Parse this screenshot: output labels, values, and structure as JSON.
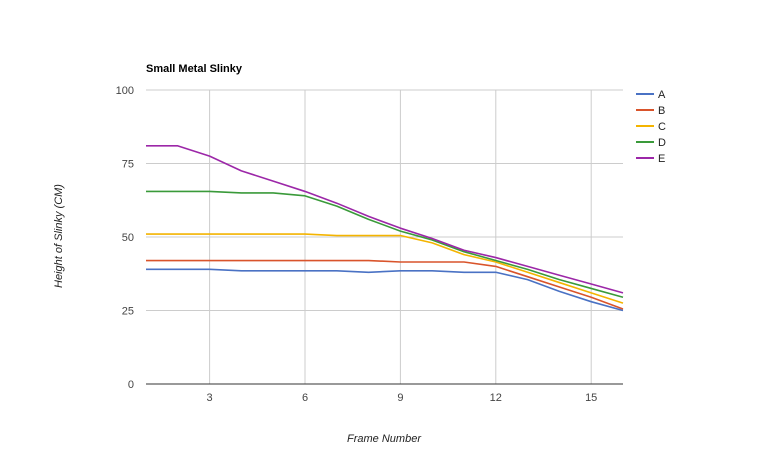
{
  "chart_data": {
    "type": "line",
    "title": "Small Metal Slinky",
    "xlabel": "Frame Number",
    "ylabel": "Height of Slinky (CM)",
    "xlim": [
      1,
      16
    ],
    "ylim": [
      0,
      100
    ],
    "x_ticks": [
      3,
      6,
      9,
      12,
      15
    ],
    "y_ticks": [
      0,
      25,
      50,
      75,
      100
    ],
    "grid": true,
    "legend_position": "right",
    "x": [
      1,
      2,
      3,
      4,
      5,
      6,
      7,
      8,
      9,
      10,
      11,
      12,
      13,
      14,
      15,
      16
    ],
    "series": [
      {
        "name": "A",
        "color": "#4a72c4",
        "values": [
          39,
          39,
          39,
          38.5,
          38.5,
          38.5,
          38.5,
          38,
          38.5,
          38.5,
          38,
          38,
          35.5,
          31.5,
          28,
          25
        ]
      },
      {
        "name": "B",
        "color": "#d9542b",
        "values": [
          42,
          42,
          42,
          42,
          42,
          42,
          42,
          42,
          41.5,
          41.5,
          41.5,
          40,
          36.5,
          33,
          29.5,
          25.5
        ]
      },
      {
        "name": "C",
        "color": "#f4b400",
        "values": [
          51,
          51,
          51,
          51,
          51,
          51,
          50.5,
          50.5,
          50.5,
          48,
          44,
          41.5,
          38,
          34.5,
          31,
          27.5
        ]
      },
      {
        "name": "D",
        "color": "#3a9a3a",
        "values": [
          65.5,
          65.5,
          65.5,
          65,
          65,
          64,
          60.5,
          56,
          52,
          49,
          45,
          42,
          39,
          35.5,
          32.5,
          29.5
        ]
      },
      {
        "name": "E",
        "color": "#9c27a8",
        "values": [
          81,
          81,
          77.5,
          72.5,
          69,
          65.5,
          61.5,
          57,
          53,
          49.5,
          45.5,
          43,
          40,
          37,
          34,
          31
        ]
      }
    ]
  }
}
